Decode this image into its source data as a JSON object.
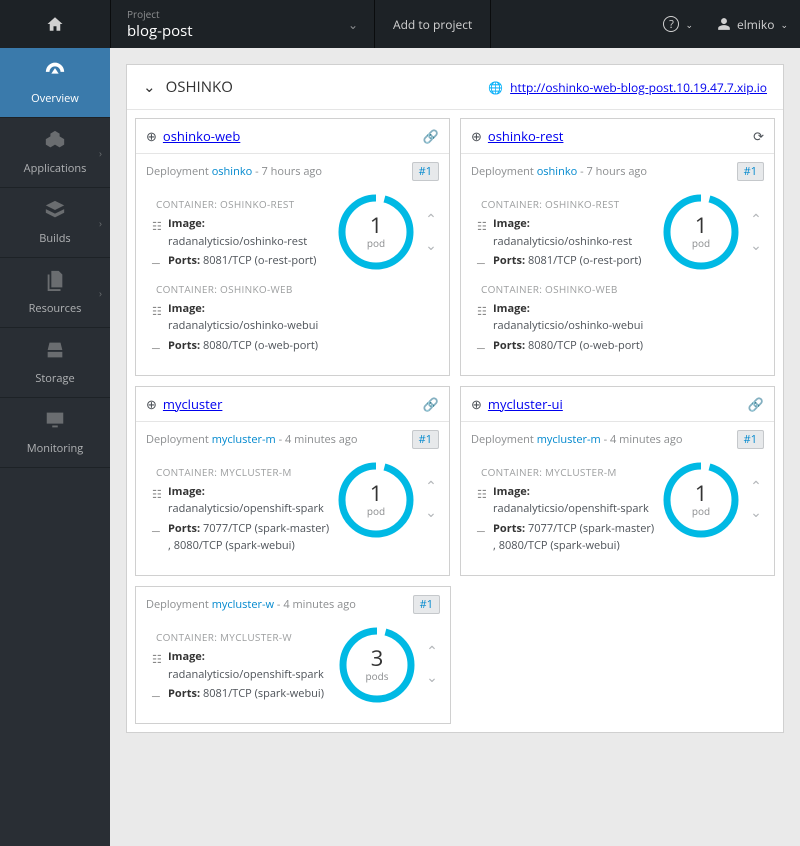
{
  "colors": {
    "accent": "#0088ce",
    "ring": "#00b9e4",
    "sidebar_active": "#3a7aab",
    "topbar": "#1d2226",
    "sidebar": "#292e34",
    "body_bg": "#eaeaea"
  },
  "topbar": {
    "project_label": "Project",
    "project_name": "blog-post",
    "add_label": "Add to project",
    "username": "elmiko"
  },
  "sidebar": {
    "items": [
      {
        "label": "Overview",
        "icon": "tachometer",
        "active": true,
        "chevron": false
      },
      {
        "label": "Applications",
        "icon": "cubes",
        "active": false,
        "chevron": true
      },
      {
        "label": "Builds",
        "icon": "layers",
        "active": false,
        "chevron": true
      },
      {
        "label": "Resources",
        "icon": "files",
        "active": false,
        "chevron": true
      },
      {
        "label": "Storage",
        "icon": "hdd",
        "active": false,
        "chevron": false
      },
      {
        "label": "Monitoring",
        "icon": "monitor",
        "active": false,
        "chevron": false
      }
    ]
  },
  "app": {
    "title": "OSHINKO",
    "route_url": "http://oshinko-web-blog-post.10.19.47.7.xip.io",
    "deployments": [
      [
        {
          "service": "oshinko-web",
          "header_icon_right": "link",
          "deployment_prefix": "Deployment",
          "deployment_link": "oshinko",
          "age": "7 hours ago",
          "rc_badge": "#1",
          "pods": {
            "count": 1,
            "label": "pod"
          },
          "containers": [
            {
              "name": "CONTAINER: OSHINKO-REST",
              "image_label": "Image:",
              "image": "radanalyticsio/oshinko-rest",
              "ports_label": "Ports:",
              "ports": "8081/TCP (o-rest-port)"
            },
            {
              "name": "CONTAINER: OSHINKO-WEB",
              "image_label": "Image:",
              "image": "radanalyticsio/oshinko-webui",
              "ports_label": "Ports:",
              "ports": "8080/TCP (o-web-port)"
            }
          ]
        },
        {
          "service": "oshinko-rest",
          "header_icon_right": "refresh",
          "deployment_prefix": "Deployment",
          "deployment_link": "oshinko",
          "age": "7 hours ago",
          "rc_badge": "#1",
          "pods": {
            "count": 1,
            "label": "pod"
          },
          "containers": [
            {
              "name": "CONTAINER: OSHINKO-REST",
              "image_label": "Image:",
              "image": "radanalyticsio/oshinko-rest",
              "ports_label": "Ports:",
              "ports": "8081/TCP (o-rest-port)"
            },
            {
              "name": "CONTAINER: OSHINKO-WEB",
              "image_label": "Image:",
              "image": "radanalyticsio/oshinko-webui",
              "ports_label": "Ports:",
              "ports": "8080/TCP (o-web-port)"
            }
          ]
        }
      ],
      [
        {
          "service": "mycluster",
          "header_icon_right": "link",
          "deployment_prefix": "Deployment",
          "deployment_link": "mycluster-m",
          "age": "4 minutes ago",
          "rc_badge": "#1",
          "pods": {
            "count": 1,
            "label": "pod"
          },
          "containers": [
            {
              "name": "CONTAINER: MYCLUSTER-M",
              "image_label": "Image:",
              "image": "radanalyticsio/openshift-spark",
              "ports_label": "Ports:",
              "ports": "7077/TCP (spark-master) , 8080/TCP (spark-webui)"
            }
          ]
        },
        {
          "service": "mycluster-ui",
          "header_icon_right": "link",
          "deployment_prefix": "Deployment",
          "deployment_link": "mycluster-m",
          "age": "4 minutes ago",
          "rc_badge": "#1",
          "pods": {
            "count": 1,
            "label": "pod"
          },
          "containers": [
            {
              "name": "CONTAINER: MYCLUSTER-M",
              "image_label": "Image:",
              "image": "radanalyticsio/openshift-spark",
              "ports_label": "Ports:",
              "ports": "7077/TCP (spark-master) , 8080/TCP (spark-webui)"
            }
          ]
        }
      ],
      [
        {
          "service": null,
          "header_icon_right": null,
          "deployment_prefix": "Deployment",
          "deployment_link": "mycluster-w",
          "age": "4 minutes ago",
          "rc_badge": "#1",
          "pods": {
            "count": 3,
            "label": "pods"
          },
          "containers": [
            {
              "name": "CONTAINER: MYCLUSTER-W",
              "image_label": "Image:",
              "image": "radanalyticsio/openshift-spark",
              "ports_label": "Ports:",
              "ports": "8081/TCP (spark-webui)"
            }
          ]
        },
        null
      ]
    ]
  }
}
